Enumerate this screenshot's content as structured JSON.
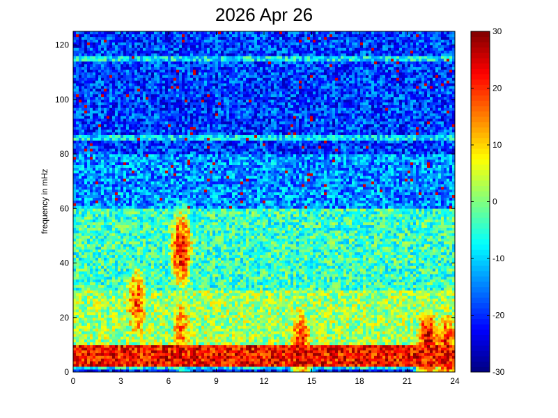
{
  "chart_data": {
    "type": "heatmap",
    "title": "2026 Apr 26",
    "xlabel": "",
    "ylabel": "frequency in mHz",
    "xlim": [
      0,
      24
    ],
    "ylim": [
      0,
      125
    ],
    "x_ticks": [
      0,
      3,
      6,
      9,
      12,
      15,
      18,
      21,
      24
    ],
    "y_ticks": [
      0,
      20,
      40,
      60,
      80,
      100,
      120
    ],
    "colorbar": {
      "range": [
        -30,
        30
      ],
      "ticks": [
        -30,
        -20,
        -10,
        0,
        10,
        20,
        30
      ],
      "colormap": "jet"
    },
    "grid": false,
    "description_rows": [
      {
        "freq_band": [
          0,
          2
        ],
        "level": -22
      },
      {
        "freq_band": [
          2,
          10
        ],
        "level": 22
      },
      {
        "freq_band": [
          10,
          30
        ],
        "level": 2
      },
      {
        "freq_band": [
          30,
          60
        ],
        "level": -4
      },
      {
        "freq_band": [
          60,
          80
        ],
        "level": -14
      },
      {
        "freq_band": [
          80,
          125
        ],
        "level": -19
      }
    ],
    "horizontal_lines_mHz": [
      2,
      58,
      86,
      115
    ],
    "hotspots": [
      {
        "time": 4,
        "freq": 25,
        "level": 18
      },
      {
        "time": 6.8,
        "freq": 45,
        "level": 22
      },
      {
        "time": 6.8,
        "freq": 15,
        "level": 15
      },
      {
        "time": 14.3,
        "freq": 10,
        "level": 20
      },
      {
        "time": 22.3,
        "freq": 10,
        "level": 24
      },
      {
        "time": 23.5,
        "freq": 8,
        "level": 22
      }
    ]
  }
}
